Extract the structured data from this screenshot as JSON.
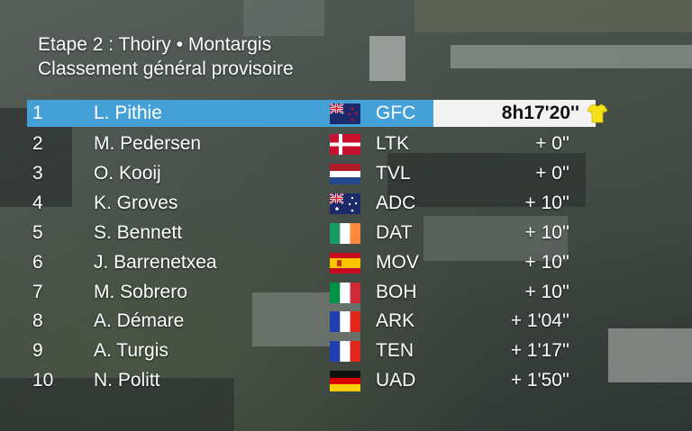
{
  "header": {
    "line1": "Etape 2 : Thoiry •  Montargis",
    "line2": "Classement général provisoire"
  },
  "colors": {
    "leader_bg": "#46a0d8",
    "time_box_bg": "#f2f2f2",
    "jersey": "#f5e21a"
  },
  "standings": [
    {
      "rank": "1",
      "name": "L. Pithie",
      "flag": "australia-nz-flag-icon",
      "team": "GFC",
      "time": "8h17'20''"
    },
    {
      "rank": "2",
      "name": "M. Pedersen",
      "flag": "denmark-flag-icon",
      "team": "LTK",
      "time": "+ 0''"
    },
    {
      "rank": "3",
      "name": "O. Kooij",
      "flag": "netherlands-flag-icon",
      "team": "TVL",
      "time": "+ 0''"
    },
    {
      "rank": "4",
      "name": "K. Groves",
      "flag": "australia-flag-icon",
      "team": "ADC",
      "time": "+ 10''"
    },
    {
      "rank": "5",
      "name": "S. Bennett",
      "flag": "ireland-flag-icon",
      "team": "DAT",
      "time": "+ 10''"
    },
    {
      "rank": "6",
      "name": "J. Barrenetxea",
      "flag": "spain-flag-icon",
      "team": "MOV",
      "time": "+ 10''"
    },
    {
      "rank": "7",
      "name": "M. Sobrero",
      "flag": "italy-flag-icon",
      "team": "BOH",
      "time": "+ 10''"
    },
    {
      "rank": "8",
      "name": "A. Démare",
      "flag": "france-flag-icon",
      "team": "ARK",
      "time": "+ 1'04''"
    },
    {
      "rank": "9",
      "name": "A. Turgis",
      "flag": "france-flag-icon",
      "team": "TEN",
      "time": "+ 1'17''"
    },
    {
      "rank": "10",
      "name": "N. Politt",
      "flag": "germany-flag-icon",
      "team": "UAD",
      "time": "+ 1'50''"
    }
  ]
}
